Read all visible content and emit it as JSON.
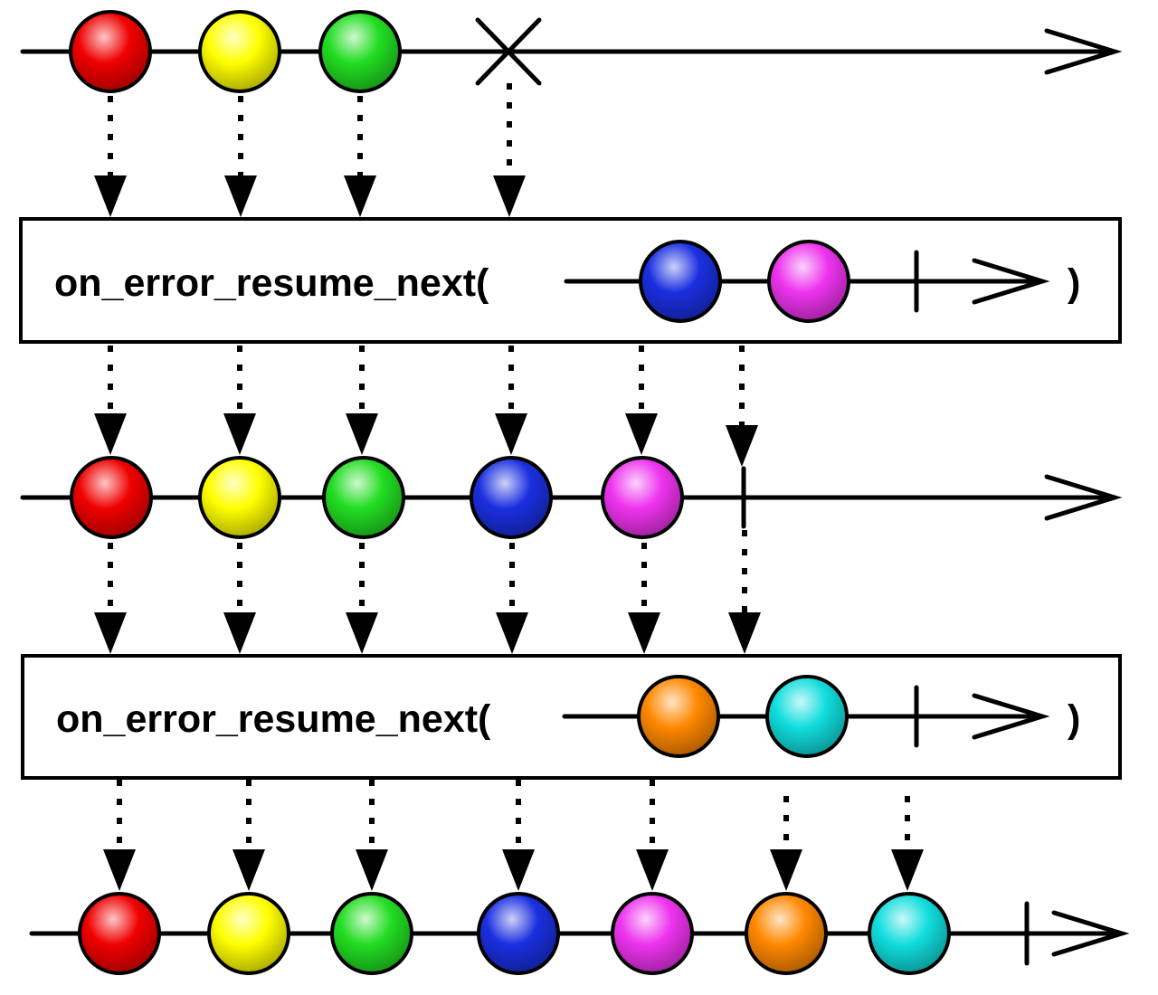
{
  "palette": {
    "red": "#f00000",
    "yellow": "#ffff00",
    "green": "#22dd22",
    "blue": "#1a2fe0",
    "magenta": "#ee33ee",
    "orange": "#ff8800",
    "cyan": "#11dddd"
  },
  "source_stream": {
    "items": [
      "red",
      "yellow",
      "green"
    ],
    "terminator": "error"
  },
  "operators": [
    {
      "label": "on_error_resume_next(",
      "close": ")",
      "items": [
        "blue",
        "magenta"
      ],
      "terminator": "complete"
    },
    {
      "label": "on_error_resume_next(",
      "close": ")",
      "items": [
        "orange",
        "cyan"
      ],
      "terminator": "complete"
    }
  ],
  "intermediate_stream": {
    "items": [
      "red",
      "yellow",
      "green",
      "blue",
      "magenta"
    ],
    "terminator": "complete"
  },
  "result_stream": {
    "items": [
      "red",
      "yellow",
      "green",
      "blue",
      "magenta",
      "orange",
      "cyan"
    ],
    "terminator": "complete"
  }
}
